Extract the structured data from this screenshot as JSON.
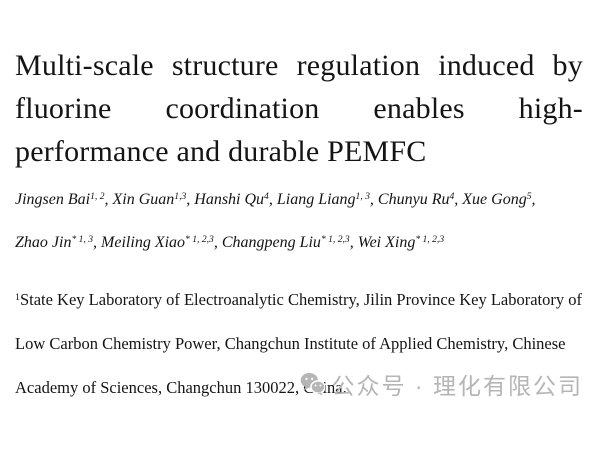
{
  "title": {
    "line1": "Multi-scale structure regulation induced by",
    "line2": "fluorine coordination enables high-",
    "line3": "performance and durable PEMFC"
  },
  "authors": {
    "line1": [
      {
        "name": "Jingsen Bai",
        "sup": "1, 2",
        "sep": ", "
      },
      {
        "name": "Xin Guan",
        "sup": "1,3",
        "sep": ", "
      },
      {
        "name": "Hanshi Qu",
        "sup": "4",
        "sep": ", "
      },
      {
        "name": "Liang Liang",
        "sup": "1, 3",
        "sep": ", "
      },
      {
        "name": "Chunyu Ru",
        "sup": "4",
        "sep": ", "
      },
      {
        "name": "Xue Gong",
        "sup": "5",
        "sep": ","
      }
    ],
    "line2": [
      {
        "name": "Zhao Jin",
        "sup": "* 1, 3",
        "sep": ", "
      },
      {
        "name": "Meiling Xiao",
        "sup": "* 1, 2,3",
        "sep": ", "
      },
      {
        "name": "Changpeng Liu",
        "sup": "* 1, 2,3",
        "sep": ", "
      },
      {
        "name": "Wei Xing",
        "sup": "* 1, 2,3",
        "sep": ""
      }
    ]
  },
  "affiliation": {
    "marker": "1",
    "line1": "State Key Laboratory of Electroanalytic Chemistry, Jilin Province Key Laboratory of",
    "line2": "Low Carbon Chemistry Power, Changchun Institute of Applied Chemistry, Chinese",
    "line3": "Academy of Sciences, Changchun 130022, China."
  },
  "watermark": {
    "icon": "wechat-icon",
    "text": "公众号 · 理化有限公司",
    "color": "#b5b5b5"
  },
  "colors": {
    "text": "#141414",
    "background": "#ffffff",
    "watermark": "#b5b5b5"
  }
}
